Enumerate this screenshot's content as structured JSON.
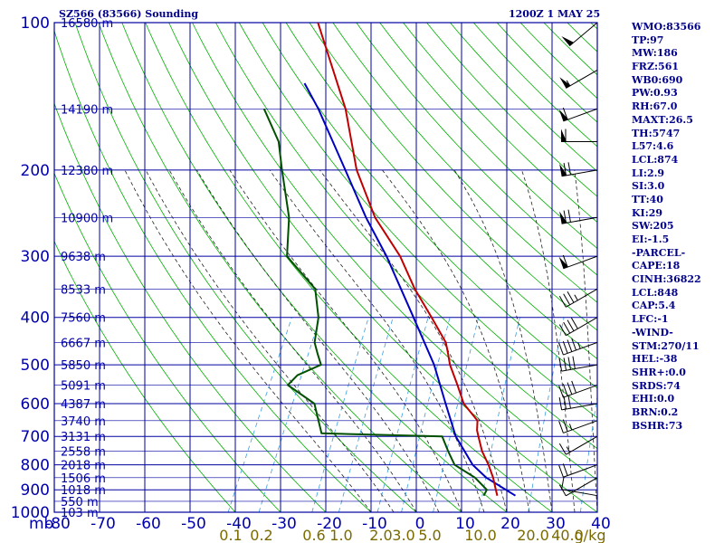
{
  "header": {
    "title": "SZ566 (83566) Sounding",
    "datetime": "1200Z  1 MAY 25"
  },
  "indices": [
    "WMO:83566",
    "TP:97",
    "MW:186",
    "FRZ:561",
    "WB0:690",
    "PW:0.93",
    "RH:67.0",
    "MAXT:26.5",
    "TH:5747",
    "L57:4.6",
    "LCL:874",
    "LI:2.9",
    "SI:3.0",
    "TT:40",
    "KI:29",
    "SW:205",
    "EI:-1.5",
    "-PARCEL-",
    "CAPE:18",
    "CINH:36822",
    "LCL:848",
    "CAP:5.4",
    "LFC:-1",
    "-WIND-",
    "STM:270/11",
    "HEL:-38",
    "SHR+:0.0",
    "SRDS:74",
    "EHI:0.0",
    "BRN:0.2",
    "BSHR:73"
  ],
  "colors": {
    "grid": "#0000a0",
    "dry_adiabat": "#00b000",
    "moist_adiabat": "#222222",
    "mixing_ratio": "#3a9ee0",
    "temperature": "#c00000",
    "dewpoint": "#005000",
    "parcel": "#0000c0",
    "axis_text": "#0000aa",
    "mixing_text": "#7a6a00",
    "wind": "#000000"
  },
  "chart_data": {
    "type": "skew-t log-p sounding",
    "pressure_unit": "mb",
    "mixing_unit": "g/kg",
    "temperature_ticks": [
      "-80",
      "-70",
      "-60",
      "-50",
      "-40",
      "-30",
      "-20",
      "-10",
      "0",
      "10",
      "20",
      "30",
      "40"
    ],
    "pressure_ticks": [
      "100",
      "200",
      "300",
      "400",
      "500",
      "600",
      "700",
      "800",
      "900",
      "1000"
    ],
    "height_labels": [
      {
        "p": 1000,
        "label": "103 m"
      },
      {
        "p": 950,
        "label": "550 m"
      },
      {
        "p": 900,
        "label": "1018 m"
      },
      {
        "p": 850,
        "label": "1506 m"
      },
      {
        "p": 800,
        "label": "2018 m"
      },
      {
        "p": 750,
        "label": "2558 m"
      },
      {
        "p": 700,
        "label": "3131 m"
      },
      {
        "p": 650,
        "label": "3740 m"
      },
      {
        "p": 600,
        "label": "4387 m"
      },
      {
        "p": 550,
        "label": "5091 m"
      },
      {
        "p": 500,
        "label": "5850 m"
      },
      {
        "p": 450,
        "label": "6667 m"
      },
      {
        "p": 400,
        "label": "7560 m"
      },
      {
        "p": 350,
        "label": "8533 m"
      },
      {
        "p": 300,
        "label": "9638 m"
      },
      {
        "p": 250,
        "label": "10900 m"
      },
      {
        "p": 200,
        "label": "12380 m"
      },
      {
        "p": 150,
        "label": "14190 m"
      },
      {
        "p": 100,
        "label": "16580 m"
      }
    ],
    "mixing_ratio_labels": [
      "0.1",
      "0.2",
      "0.6",
      "1.0",
      "2.0",
      "3.0",
      "5.0",
      "10.0",
      "20.0",
      "40.0"
    ],
    "mixing_ratio_values": [
      0.1,
      0.2,
      0.6,
      1.0,
      2.0,
      3.0,
      5.0,
      10.0,
      20.0,
      40.0
    ],
    "temperature": [
      {
        "p": 925,
        "t": 16
      },
      {
        "p": 900,
        "t": 15
      },
      {
        "p": 850,
        "t": 13
      },
      {
        "p": 800,
        "t": 10.5
      },
      {
        "p": 750,
        "t": 7.5
      },
      {
        "p": 700,
        "t": 5
      },
      {
        "p": 680,
        "t": 4
      },
      {
        "p": 650,
        "t": 3
      },
      {
        "p": 600,
        "t": -2
      },
      {
        "p": 550,
        "t": -5.5
      },
      {
        "p": 500,
        "t": -9.5
      },
      {
        "p": 470,
        "t": -11.5
      },
      {
        "p": 450,
        "t": -13
      },
      {
        "p": 400,
        "t": -19
      },
      {
        "p": 350,
        "t": -26
      },
      {
        "p": 300,
        "t": -33
      },
      {
        "p": 250,
        "t": -43
      },
      {
        "p": 200,
        "t": -52.5
      },
      {
        "p": 150,
        "t": -62
      },
      {
        "p": 100,
        "t": -78
      }
    ],
    "dewpoint": [
      {
        "p": 925,
        "t": 13
      },
      {
        "p": 900,
        "t": 13
      },
      {
        "p": 850,
        "t": 9
      },
      {
        "p": 800,
        "t": 3
      },
      {
        "p": 750,
        "t": 0
      },
      {
        "p": 700,
        "t": -3
      },
      {
        "p": 690,
        "t": -30
      },
      {
        "p": 600,
        "t": -35
      },
      {
        "p": 550,
        "t": -43
      },
      {
        "p": 525,
        "t": -42
      },
      {
        "p": 500,
        "t": -38
      },
      {
        "p": 475,
        "t": -40
      },
      {
        "p": 450,
        "t": -42
      },
      {
        "p": 400,
        "t": -44
      },
      {
        "p": 350,
        "t": -48
      },
      {
        "p": 300,
        "t": -58
      },
      {
        "p": 250,
        "t": -62
      },
      {
        "p": 200,
        "t": -69
      },
      {
        "p": 175,
        "t": -73
      },
      {
        "p": 150,
        "t": -80
      }
    ],
    "parcel": [
      {
        "p": 925,
        "t": 20
      },
      {
        "p": 850,
        "t": 11.5
      },
      {
        "p": 800,
        "t": 7
      },
      {
        "p": 700,
        "t": 0
      },
      {
        "p": 600,
        "t": -6
      },
      {
        "p": 500,
        "t": -13
      },
      {
        "p": 400,
        "t": -23
      },
      {
        "p": 300,
        "t": -36
      },
      {
        "p": 250,
        "t": -45
      },
      {
        "p": 200,
        "t": -55
      },
      {
        "p": 150,
        "t": -68
      },
      {
        "p": 133,
        "t": -74
      }
    ],
    "wind_barbs": [
      {
        "p": 925,
        "dir": 280,
        "spd": 10
      },
      {
        "p": 850,
        "dir": 240,
        "spd": 10
      },
      {
        "p": 800,
        "dir": 250,
        "spd": 20
      },
      {
        "p": 700,
        "dir": 240,
        "spd": 15
      },
      {
        "p": 650,
        "dir": 250,
        "spd": 25
      },
      {
        "p": 600,
        "dir": 260,
        "spd": 30
      },
      {
        "p": 550,
        "dir": 250,
        "spd": 40
      },
      {
        "p": 500,
        "dir": 260,
        "spd": 40
      },
      {
        "p": 450,
        "dir": 250,
        "spd": 45
      },
      {
        "p": 400,
        "dir": 240,
        "spd": 40
      },
      {
        "p": 350,
        "dir": 240,
        "spd": 35
      },
      {
        "p": 300,
        "dir": 250,
        "spd": 60
      },
      {
        "p": 250,
        "dir": 260,
        "spd": 70
      },
      {
        "p": 200,
        "dir": 260,
        "spd": 70
      },
      {
        "p": 175,
        "dir": 270,
        "spd": 60
      },
      {
        "p": 150,
        "dir": 250,
        "spd": 60
      },
      {
        "p": 125,
        "dir": 240,
        "spd": 55
      },
      {
        "p": 100,
        "dir": 230,
        "spd": 50
      }
    ]
  }
}
